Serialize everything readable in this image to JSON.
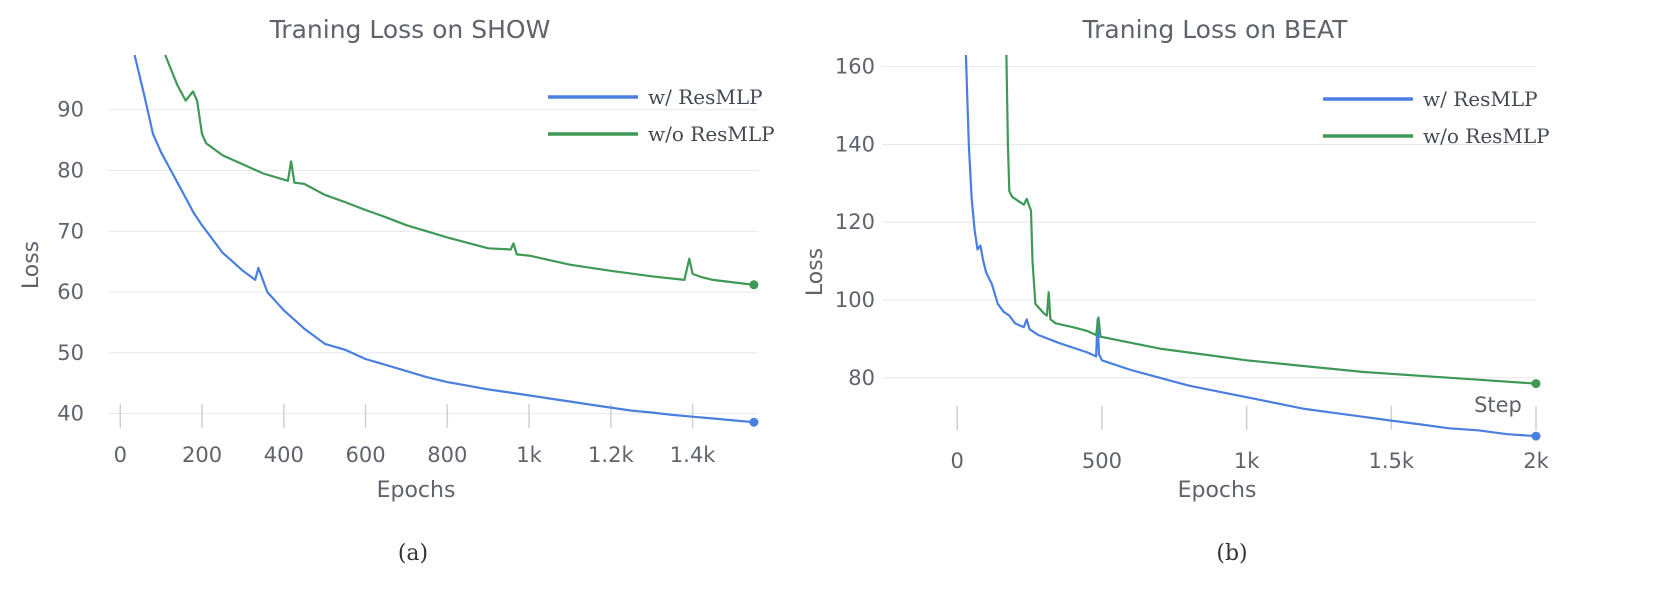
{
  "chart_data": [
    {
      "type": "line",
      "title": "Traning Loss on SHOW",
      "xlabel": "Epochs",
      "ylabel": "Loss",
      "xlim": [
        -30,
        1560
      ],
      "ylim": [
        36,
        99
      ],
      "xticks": [
        0,
        200,
        400,
        600,
        800,
        1000,
        1200,
        1400
      ],
      "xtick_labels": [
        "0",
        "200",
        "400",
        "600",
        "800",
        "1k",
        "1.2k",
        "1.4k"
      ],
      "yticks": [
        40,
        50,
        60,
        70,
        80,
        90
      ],
      "ytick_labels": [
        "40",
        "50",
        "60",
        "70",
        "80",
        "90"
      ],
      "grid": true,
      "legend_position": "top-right",
      "caption": "(a)",
      "series": [
        {
          "name": "w/ ResMLP",
          "color": "#4a7fe0",
          "x": [
            35,
            60,
            80,
            100,
            120,
            140,
            160,
            180,
            200,
            250,
            300,
            330,
            338,
            346,
            360,
            400,
            450,
            500,
            550,
            600,
            650,
            700,
            750,
            800,
            850,
            900,
            950,
            1000,
            1050,
            1100,
            1150,
            1200,
            1250,
            1300,
            1350,
            1400,
            1450,
            1500,
            1550
          ],
          "y": [
            99,
            92,
            86,
            83,
            80.5,
            78,
            75.5,
            73,
            71,
            66.5,
            63.5,
            62,
            64,
            62.5,
            60,
            57,
            54,
            51.5,
            50.5,
            49,
            48,
            47,
            46,
            45.2,
            44.6,
            44,
            43.5,
            43,
            42.5,
            42,
            41.5,
            41,
            40.5,
            40.2,
            39.8,
            39.5,
            39.2,
            38.9,
            38.6
          ]
        },
        {
          "name": "w/o ResMLP",
          "color": "#3e9957",
          "x": [
            110,
            140,
            160,
            178,
            188,
            200,
            210,
            250,
            300,
            350,
            410,
            418,
            426,
            450,
            500,
            550,
            600,
            650,
            700,
            800,
            900,
            955,
            962,
            970,
            1000,
            1100,
            1200,
            1300,
            1380,
            1392,
            1400,
            1420,
            1450,
            1500,
            1550
          ],
          "y": [
            99,
            94,
            91.5,
            93,
            91.5,
            86,
            84.5,
            82.5,
            81,
            79.5,
            78.3,
            81.5,
            78,
            77.8,
            76,
            74.8,
            73.5,
            72.3,
            71,
            69,
            67.2,
            67,
            68,
            66.2,
            66,
            64.5,
            63.5,
            62.6,
            62,
            65.5,
            63,
            62.5,
            62,
            61.6,
            61.2
          ]
        }
      ]
    },
    {
      "type": "line",
      "title": "Traning Loss on BEAT",
      "xlabel": "Epochs",
      "ylabel": "Loss",
      "xlim": [
        -260,
        2000
      ],
      "ylim": [
        64,
        163
      ],
      "xticks": [
        0,
        500,
        1000,
        1500,
        2000
      ],
      "xtick_labels": [
        "0",
        "500",
        "1k",
        "1.5k",
        "2k"
      ],
      "yticks": [
        80,
        100,
        120,
        140,
        160
      ],
      "ytick_labels": [
        "80",
        "100",
        "120",
        "140",
        "160"
      ],
      "grid": true,
      "legend_position": "top-right",
      "caption": "(b)",
      "overlay_text": "Step",
      "series": [
        {
          "name": "w/ ResMLP",
          "color": "#4a7fe0",
          "x": [
            30,
            40,
            50,
            60,
            70,
            80,
            90,
            100,
            120,
            140,
            160,
            180,
            200,
            230,
            240,
            250,
            280,
            350,
            450,
            480,
            485,
            490,
            500,
            600,
            700,
            800,
            900,
            1000,
            1100,
            1200,
            1300,
            1400,
            1500,
            1600,
            1700,
            1800,
            1900,
            2000
          ],
          "y": [
            163,
            140,
            126,
            118,
            113,
            114,
            110,
            107,
            104,
            99,
            97,
            96,
            94,
            93,
            95,
            92.5,
            91,
            89,
            86.5,
            85.5,
            95,
            86,
            84.5,
            82,
            80,
            78,
            76.5,
            75,
            73.5,
            72,
            71,
            70,
            69,
            68,
            67,
            66.5,
            65.5,
            65
          ]
        },
        {
          "name": "w/o ResMLP",
          "color": "#3e9957",
          "x": [
            170,
            175,
            180,
            190,
            210,
            230,
            240,
            255,
            260,
            270,
            300,
            310,
            316,
            322,
            340,
            400,
            450,
            480,
            488,
            495,
            500,
            600,
            700,
            800,
            900,
            1000,
            1200,
            1400,
            1600,
            1800,
            2000
          ],
          "y": [
            163,
            140,
            128,
            126.5,
            125.5,
            124.5,
            126,
            123,
            110,
            99,
            96.5,
            96,
            102,
            95,
            94,
            93,
            92,
            91,
            95.5,
            90.5,
            90.5,
            89,
            87.5,
            86.5,
            85.5,
            84.5,
            83,
            81.5,
            80.5,
            79.5,
            78.5
          ]
        }
      ]
    }
  ]
}
